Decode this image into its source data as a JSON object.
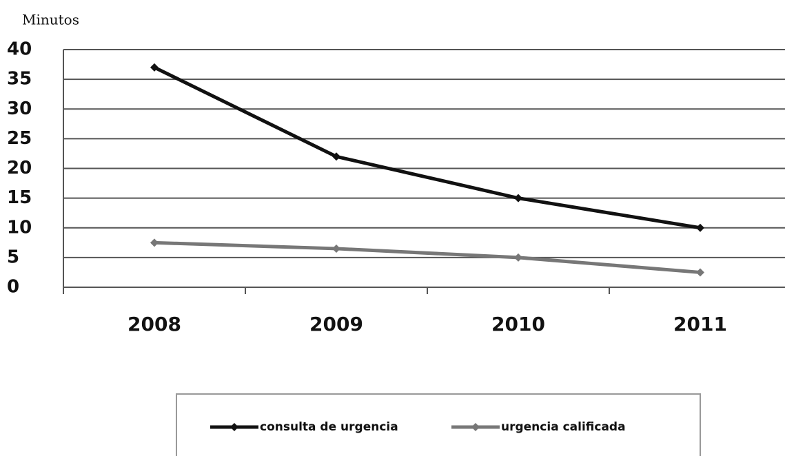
{
  "chart_data": {
    "type": "line",
    "y_label": "Minutos",
    "categories": [
      "2008",
      "2009",
      "2010",
      "2011"
    ],
    "series": [
      {
        "name": "consulta de urgencia",
        "color": "#111111",
        "values": [
          37,
          22,
          15,
          10
        ]
      },
      {
        "name": "urgencia calificada",
        "color": "#777777",
        "values": [
          7.5,
          6.5,
          5,
          2.5
        ]
      }
    ],
    "ylim": [
      0,
      40
    ],
    "yticks": [
      0,
      5,
      10,
      15,
      20,
      25,
      30,
      35,
      40
    ],
    "grid": true,
    "legend": "bottom"
  }
}
